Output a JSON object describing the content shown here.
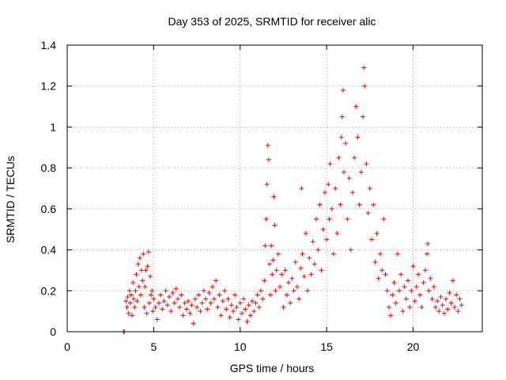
{
  "chart_data": {
    "type": "scatter",
    "title": "Day 353 of 2025, SRMTID for receiver alic",
    "xlabel": "GPS time / hours",
    "ylabel": "SRMTID / TECUs",
    "xlim": [
      0,
      24
    ],
    "ylim": [
      0,
      1.4
    ],
    "x_ticks": [
      0,
      5,
      10,
      15,
      20
    ],
    "y_ticks": [
      0,
      0.2,
      0.4,
      0.6,
      0.8,
      1,
      1.2,
      1.4
    ],
    "x_tick_labels": [
      "0",
      "5",
      "10",
      "15",
      "20"
    ],
    "y_tick_labels": [
      "0",
      "0.2",
      "0.4",
      "0.6",
      "0.8",
      "1",
      "1.2",
      "1.4"
    ],
    "grid": true,
    "marker": "plus",
    "color": "#ff0000",
    "series": [
      {
        "name": "SRMTID",
        "points": [
          [
            3.25,
            0.0
          ],
          [
            3.3,
            0.0
          ],
          [
            3.4,
            0.15
          ],
          [
            3.45,
            0.12
          ],
          [
            3.5,
            0.17
          ],
          [
            3.55,
            0.09
          ],
          [
            3.6,
            0.2
          ],
          [
            3.65,
            0.14
          ],
          [
            3.7,
            0.18
          ],
          [
            3.75,
            0.08
          ],
          [
            3.8,
            0.24
          ],
          [
            3.85,
            0.16
          ],
          [
            3.9,
            0.12
          ],
          [
            3.95,
            0.2
          ],
          [
            4.0,
            0.28
          ],
          [
            4.05,
            0.15
          ],
          [
            4.1,
            0.33
          ],
          [
            4.15,
            0.22
          ],
          [
            4.2,
            0.36
          ],
          [
            4.25,
            0.18
          ],
          [
            4.3,
            0.3
          ],
          [
            4.35,
            0.25
          ],
          [
            4.4,
            0.38
          ],
          [
            4.45,
            0.12
          ],
          [
            4.5,
            0.22
          ],
          [
            4.55,
            0.3
          ],
          [
            4.6,
            0.09
          ],
          [
            4.65,
            0.32
          ],
          [
            4.7,
            0.39
          ],
          [
            4.75,
            0.14
          ],
          [
            4.8,
            0.27
          ],
          [
            4.85,
            0.18
          ],
          [
            4.9,
            0.2
          ],
          [
            4.95,
            0.1
          ],
          [
            5.0,
            0.16
          ],
          [
            5.1,
            0.12
          ],
          [
            5.2,
            0.06
          ],
          [
            5.3,
            0.14
          ],
          [
            5.4,
            0.18
          ],
          [
            5.5,
            0.11
          ],
          [
            5.6,
            0.15
          ],
          [
            5.7,
            0.2
          ],
          [
            5.8,
            0.13
          ],
          [
            5.9,
            0.17
          ],
          [
            6.0,
            0.1
          ],
          [
            6.1,
            0.19
          ],
          [
            6.2,
            0.14
          ],
          [
            6.3,
            0.21
          ],
          [
            6.4,
            0.16
          ],
          [
            6.5,
            0.12
          ],
          [
            6.6,
            0.18
          ],
          [
            6.7,
            0.08
          ],
          [
            6.8,
            0.14
          ],
          [
            6.9,
            0.11
          ],
          [
            7.0,
            0.15
          ],
          [
            7.1,
            0.09
          ],
          [
            7.2,
            0.13
          ],
          [
            7.3,
            0.04
          ],
          [
            7.4,
            0.16
          ],
          [
            7.5,
            0.12
          ],
          [
            7.6,
            0.18
          ],
          [
            7.7,
            0.1
          ],
          [
            7.8,
            0.14
          ],
          [
            7.9,
            0.2
          ],
          [
            8.0,
            0.16
          ],
          [
            8.1,
            0.11
          ],
          [
            8.2,
            0.19
          ],
          [
            8.3,
            0.14
          ],
          [
            8.4,
            0.22
          ],
          [
            8.5,
            0.16
          ],
          [
            8.6,
            0.25
          ],
          [
            8.7,
            0.12
          ],
          [
            8.8,
            0.18
          ],
          [
            8.9,
            0.08
          ],
          [
            9.0,
            0.15
          ],
          [
            9.1,
            0.2
          ],
          [
            9.2,
            0.11
          ],
          [
            9.3,
            0.16
          ],
          [
            9.4,
            0.07
          ],
          [
            9.5,
            0.13
          ],
          [
            9.6,
            0.1
          ],
          [
            9.7,
            0.18
          ],
          [
            9.8,
            0.12
          ],
          [
            9.9,
            0.06
          ],
          [
            10.0,
            0.14
          ],
          [
            10.1,
            0.09
          ],
          [
            10.2,
            0.16
          ],
          [
            10.3,
            0.11
          ],
          [
            10.4,
            0.05
          ],
          [
            10.5,
            0.13
          ],
          [
            10.6,
            0.08
          ],
          [
            10.7,
            0.15
          ],
          [
            10.8,
            0.1
          ],
          [
            10.9,
            0.14
          ],
          [
            11.0,
            0.18
          ],
          [
            11.1,
            0.12
          ],
          [
            11.2,
            0.2
          ],
          [
            11.3,
            0.16
          ],
          [
            11.4,
            0.25
          ],
          [
            11.45,
            0.42
          ],
          [
            11.5,
            0.55
          ],
          [
            11.55,
            0.72
          ],
          [
            11.6,
            0.91
          ],
          [
            11.65,
            0.84
          ],
          [
            11.7,
            0.33
          ],
          [
            11.75,
            0.18
          ],
          [
            11.8,
            0.42
          ],
          [
            11.85,
            0.28
          ],
          [
            11.9,
            0.35
          ],
          [
            11.95,
            0.66
          ],
          [
            12.0,
            0.52
          ],
          [
            12.05,
            0.2
          ],
          [
            12.1,
            0.3
          ],
          [
            12.2,
            0.38
          ],
          [
            12.3,
            0.22
          ],
          [
            12.4,
            0.28
          ],
          [
            12.5,
            0.12
          ],
          [
            12.6,
            0.3
          ],
          [
            12.7,
            0.18
          ],
          [
            12.8,
            0.24
          ],
          [
            12.9,
            0.14
          ],
          [
            13.0,
            0.26
          ],
          [
            13.1,
            0.2
          ],
          [
            13.2,
            0.34
          ],
          [
            13.3,
            0.22
          ],
          [
            13.4,
            0.16
          ],
          [
            13.5,
            0.31
          ],
          [
            13.55,
            0.7
          ],
          [
            13.6,
            0.38
          ],
          [
            13.7,
            0.27
          ],
          [
            13.8,
            0.48
          ],
          [
            13.9,
            0.2
          ],
          [
            14.0,
            0.36
          ],
          [
            14.1,
            0.28
          ],
          [
            14.2,
            0.44
          ],
          [
            14.3,
            0.33
          ],
          [
            14.4,
            0.55
          ],
          [
            14.5,
            0.4
          ],
          [
            14.6,
            0.62
          ],
          [
            14.7,
            0.3
          ],
          [
            14.8,
            0.5
          ],
          [
            14.9,
            0.68
          ],
          [
            15.0,
            0.45
          ],
          [
            15.1,
            0.72
          ],
          [
            15.15,
            0.55
          ],
          [
            15.2,
            0.82
          ],
          [
            15.3,
            0.6
          ],
          [
            15.4,
            0.38
          ],
          [
            15.5,
            0.7
          ],
          [
            15.6,
            0.48
          ],
          [
            15.7,
            0.85
          ],
          [
            15.8,
            0.62
          ],
          [
            15.85,
            0.95
          ],
          [
            15.9,
            1.05
          ],
          [
            15.95,
            1.18
          ],
          [
            16.0,
            0.78
          ],
          [
            16.1,
            0.92
          ],
          [
            16.2,
            0.55
          ],
          [
            16.3,
            0.75
          ],
          [
            16.4,
            0.4
          ],
          [
            16.5,
            0.68
          ],
          [
            16.6,
            0.85
          ],
          [
            16.7,
            1.1
          ],
          [
            16.8,
            0.95
          ],
          [
            16.9,
            0.62
          ],
          [
            17.0,
            0.78
          ],
          [
            17.1,
            1.05
          ],
          [
            17.15,
            1.29
          ],
          [
            17.2,
            1.2
          ],
          [
            17.3,
            0.82
          ],
          [
            17.4,
            0.58
          ],
          [
            17.5,
            0.7
          ],
          [
            17.6,
            0.45
          ],
          [
            17.7,
            0.62
          ],
          [
            17.8,
            0.34
          ],
          [
            17.9,
            0.48
          ],
          [
            18.0,
            0.26
          ],
          [
            18.1,
            0.38
          ],
          [
            18.2,
            0.3
          ],
          [
            18.3,
            0.55
          ],
          [
            18.4,
            0.28
          ],
          [
            18.5,
            0.2
          ],
          [
            18.6,
            0.12
          ],
          [
            18.7,
            0.08
          ],
          [
            18.8,
            0.18
          ],
          [
            18.9,
            0.24
          ],
          [
            19.0,
            0.14
          ],
          [
            19.1,
            0.38
          ],
          [
            19.2,
            0.2
          ],
          [
            19.3,
            0.28
          ],
          [
            19.4,
            0.1
          ],
          [
            19.5,
            0.22
          ],
          [
            19.6,
            0.16
          ],
          [
            19.7,
            0.25
          ],
          [
            19.8,
            0.12
          ],
          [
            19.9,
            0.2
          ],
          [
            20.0,
            0.32
          ],
          [
            20.1,
            0.15
          ],
          [
            20.2,
            0.22
          ],
          [
            20.3,
            0.28
          ],
          [
            20.4,
            0.18
          ],
          [
            20.5,
            0.12
          ],
          [
            20.6,
            0.24
          ],
          [
            20.7,
            0.3
          ],
          [
            20.8,
            0.38
          ],
          [
            20.85,
            0.43
          ],
          [
            20.9,
            0.2
          ],
          [
            21.0,
            0.26
          ],
          [
            21.1,
            0.16
          ],
          [
            21.2,
            0.22
          ],
          [
            21.3,
            0.12
          ],
          [
            21.4,
            0.15
          ],
          [
            21.5,
            0.1
          ],
          [
            21.6,
            0.17
          ],
          [
            21.7,
            0.13
          ],
          [
            21.8,
            0.09
          ],
          [
            21.9,
            0.16
          ],
          [
            22.0,
            0.11
          ],
          [
            22.1,
            0.19
          ],
          [
            22.2,
            0.14
          ],
          [
            22.3,
            0.25
          ],
          [
            22.4,
            0.12
          ],
          [
            22.5,
            0.18
          ],
          [
            22.6,
            0.1
          ],
          [
            22.7,
            0.16
          ],
          [
            22.8,
            0.13
          ]
        ]
      }
    ]
  }
}
